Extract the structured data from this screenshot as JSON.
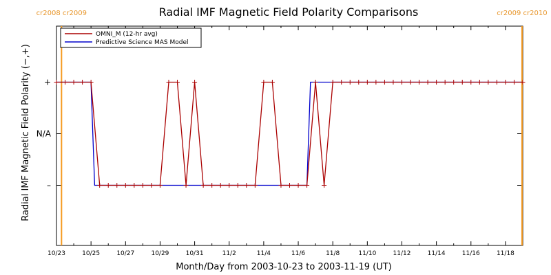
{
  "chart_data": {
    "type": "line",
    "title": "Radial IMF Magnetic Field Polarity Comparisons",
    "xlabel": "Month/Day from 2003-10-23 to 2003-11-19 (UT)",
    "ylabel": "Radial IMF Magnetic Field Polarity (−,+)",
    "x_ticks": [
      "10/23",
      "10/25",
      "10/27",
      "10/29",
      "10/31",
      "11/2",
      "11/4",
      "11/6",
      "11/8",
      "11/10",
      "11/12",
      "11/14",
      "11/16",
      "11/18"
    ],
    "y_ticks": [
      "+",
      "N/A",
      "–"
    ],
    "xlim": [
      "2003-10-23T00:00",
      "2003-11-19T00:00"
    ],
    "ylim": [
      -2,
      2
    ],
    "y_values_meaning": {
      "1": "+",
      "0": "N/A",
      "-1": "–"
    },
    "carrington_markers": [
      {
        "label": "cr2008 cr2009",
        "x": "2003-10-23T07:00"
      },
      {
        "label": "cr2009 cr2010",
        "x": "2003-11-18T23:00"
      }
    ],
    "colors": {
      "omni": "#aa0000",
      "mas": "#0000cc",
      "carrington": "#f59a22",
      "axes": "#000000"
    },
    "legend_position": "top-left",
    "series": [
      {
        "name": "OMNI_M (12-hr avg)",
        "color": "#aa0000",
        "marker": "plus",
        "points": [
          [
            "2003-10-23T00:00",
            1
          ],
          [
            "2003-10-23T12:00",
            1
          ],
          [
            "2003-10-24T00:00",
            1
          ],
          [
            "2003-10-24T12:00",
            1
          ],
          [
            "2003-10-25T00:00",
            1
          ],
          [
            "2003-10-25T12:00",
            -1
          ],
          [
            "2003-10-26T00:00",
            -1
          ],
          [
            "2003-10-26T12:00",
            -1
          ],
          [
            "2003-10-27T00:00",
            -1
          ],
          [
            "2003-10-27T12:00",
            -1
          ],
          [
            "2003-10-28T00:00",
            -1
          ],
          [
            "2003-10-28T12:00",
            -1
          ],
          [
            "2003-10-29T00:00",
            -1
          ],
          [
            "2003-10-29T12:00",
            1
          ],
          [
            "2003-10-30T00:00",
            1
          ],
          [
            "2003-10-30T12:00",
            -1
          ],
          [
            "2003-10-31T00:00",
            1
          ],
          [
            "2003-10-31T12:00",
            -1
          ],
          [
            "2003-11-01T00:00",
            -1
          ],
          [
            "2003-11-01T12:00",
            -1
          ],
          [
            "2003-11-02T00:00",
            -1
          ],
          [
            "2003-11-02T12:00",
            -1
          ],
          [
            "2003-11-03T00:00",
            -1
          ],
          [
            "2003-11-03T12:00",
            -1
          ],
          [
            "2003-11-04T00:00",
            1
          ],
          [
            "2003-11-04T12:00",
            1
          ],
          [
            "2003-11-05T00:00",
            -1
          ],
          [
            "2003-11-05T12:00",
            -1
          ],
          [
            "2003-11-06T00:00",
            -1
          ],
          [
            "2003-11-06T12:00",
            -1
          ],
          [
            "2003-11-07T00:00",
            1
          ],
          [
            "2003-11-07T12:00",
            -1
          ],
          [
            "2003-11-08T00:00",
            1
          ],
          [
            "2003-11-08T12:00",
            1
          ],
          [
            "2003-11-09T00:00",
            1
          ],
          [
            "2003-11-09T12:00",
            1
          ],
          [
            "2003-11-10T00:00",
            1
          ],
          [
            "2003-11-10T12:00",
            1
          ],
          [
            "2003-11-11T00:00",
            1
          ],
          [
            "2003-11-11T12:00",
            1
          ],
          [
            "2003-11-12T00:00",
            1
          ],
          [
            "2003-11-12T12:00",
            1
          ],
          [
            "2003-11-13T00:00",
            1
          ],
          [
            "2003-11-13T12:00",
            1
          ],
          [
            "2003-11-14T00:00",
            1
          ],
          [
            "2003-11-14T12:00",
            1
          ],
          [
            "2003-11-15T00:00",
            1
          ],
          [
            "2003-11-15T12:00",
            1
          ],
          [
            "2003-11-16T00:00",
            1
          ],
          [
            "2003-11-16T12:00",
            1
          ],
          [
            "2003-11-17T00:00",
            1
          ],
          [
            "2003-11-17T12:00",
            1
          ],
          [
            "2003-11-18T00:00",
            1
          ],
          [
            "2003-11-18T12:00",
            1
          ],
          [
            "2003-11-19T00:00",
            1
          ]
        ]
      },
      {
        "name": "Predictive Science MAS Model",
        "color": "#0000cc",
        "marker": "none",
        "points": [
          [
            "2003-10-23T00:00",
            1
          ],
          [
            "2003-10-25T00:00",
            1
          ],
          [
            "2003-10-25T05:00",
            -1
          ],
          [
            "2003-11-06T12:00",
            -1
          ],
          [
            "2003-11-06T17:00",
            1
          ],
          [
            "2003-11-19T00:00",
            1
          ]
        ]
      }
    ]
  }
}
